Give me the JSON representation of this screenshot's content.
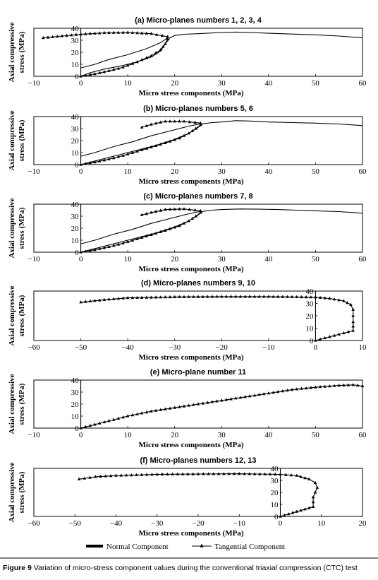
{
  "caption": {
    "label": "Figure 9",
    "text": "Variation of micro-stress component values during the conventional triaxial compression (CTC) test"
  },
  "legend": {
    "normal": "Normal Component",
    "tangential": "Tangential Component"
  },
  "chart_data": [
    {
      "type": "line",
      "title": "(a) Micro-planes numbers 1, 2, 3, 4",
      "xlabel": "Micro stress components (MPa)",
      "ylabel": "Axial compressive stress (MPa)",
      "xlim": [
        -10,
        60
      ],
      "ylim": [
        0,
        40
      ],
      "xticks": [
        -10,
        0,
        10,
        20,
        30,
        40,
        50,
        60
      ],
      "yticks": [
        0,
        10,
        20,
        30,
        40
      ],
      "series": [
        {
          "name": "Normal Component",
          "marker": "none",
          "points": [
            [
              0,
              0
            ],
            [
              2,
              3
            ],
            [
              5,
              6
            ],
            [
              9,
              9
            ],
            [
              12,
              12
            ],
            [
              15,
              16
            ],
            [
              17,
              21
            ],
            [
              18,
              27
            ],
            [
              19,
              32
            ],
            [
              20,
              34
            ],
            [
              22,
              35
            ],
            [
              25,
              35.5
            ],
            [
              30,
              36.5
            ],
            [
              33,
              36.8
            ],
            [
              36,
              36.5
            ],
            [
              40,
              35.8
            ],
            [
              45,
              35.2
            ],
            [
              50,
              34.5
            ],
            [
              55,
              33.5
            ],
            [
              60,
              32
            ]
          ]
        },
        {
          "name": "Normal Component",
          "marker": "none",
          "points": [
            [
              0,
              7
            ],
            [
              3,
              10
            ],
            [
              6,
              14
            ],
            [
              10,
              18
            ],
            [
              14,
              23
            ],
            [
              17,
              28
            ],
            [
              18.5,
              32
            ]
          ]
        },
        {
          "name": "Tangential Component",
          "marker": "triangle",
          "points": [
            [
              0,
              0
            ],
            [
              3,
              2
            ],
            [
              6,
              4.5
            ],
            [
              9,
              7.5
            ],
            [
              12,
              12
            ],
            [
              15,
              17
            ],
            [
              17,
              22
            ],
            [
              18,
              27
            ],
            [
              18.5,
              31
            ],
            [
              18.5,
              33
            ],
            [
              15,
              35.5
            ],
            [
              10,
              36.5
            ],
            [
              5,
              36.2
            ],
            [
              0,
              35
            ],
            [
              -4,
              33.5
            ],
            [
              -8,
              32
            ]
          ]
        }
      ]
    },
    {
      "type": "line",
      "title": "(b) Micro-planes numbers 5, 6",
      "xlabel": "Micro stress components (MPa)",
      "ylabel": "Axial compressive stress (MPa)",
      "xlim": [
        -10,
        60
      ],
      "ylim": [
        0,
        40
      ],
      "xticks": [
        -10,
        0,
        10,
        20,
        30,
        40,
        50,
        60
      ],
      "yticks": [
        0,
        10,
        20,
        30,
        40
      ],
      "series": [
        {
          "name": "Normal Component",
          "marker": "none",
          "points": [
            [
              0,
              0
            ],
            [
              4,
              4
            ],
            [
              8,
              8
            ],
            [
              12,
              12
            ],
            [
              16,
              16
            ],
            [
              20,
              21
            ],
            [
              23,
              26
            ],
            [
              25,
              31
            ],
            [
              26,
              34
            ],
            [
              28,
              35
            ],
            [
              30,
              35.5
            ],
            [
              33,
              36.6
            ],
            [
              36,
              36.3
            ],
            [
              40,
              35.5
            ],
            [
              45,
              35
            ],
            [
              50,
              34.5
            ],
            [
              55,
              33.8
            ],
            [
              60,
              32.5
            ]
          ]
        },
        {
          "name": "Normal Component",
          "marker": "none",
          "points": [
            [
              0,
              7
            ],
            [
              3,
              10
            ],
            [
              7,
              15
            ],
            [
              11,
              19
            ],
            [
              15,
              24
            ],
            [
              19,
              28
            ],
            [
              23,
              32
            ],
            [
              25.5,
              34
            ]
          ]
        },
        {
          "name": "Tangential Component",
          "marker": "triangle",
          "points": [
            [
              0,
              0
            ],
            [
              3,
              2
            ],
            [
              6,
              4.5
            ],
            [
              9,
              7.5
            ],
            [
              12,
              11
            ],
            [
              15,
              14.5
            ],
            [
              18,
              18
            ],
            [
              21,
              22
            ],
            [
              23,
              26
            ],
            [
              24.5,
              30
            ],
            [
              25.5,
              33
            ],
            [
              25.5,
              34.5
            ],
            [
              22,
              36
            ],
            [
              18,
              36
            ],
            [
              15,
              33.5
            ],
            [
              13,
              31
            ]
          ]
        }
      ]
    },
    {
      "type": "line",
      "title": "(c) Micro-planes numbers 7, 8",
      "xlabel": "Micro stress components (MPa)",
      "ylabel": "Axial compressive stress (MPa)",
      "xlim": [
        -10,
        60
      ],
      "ylim": [
        0,
        40
      ],
      "xticks": [
        -10,
        0,
        10,
        20,
        30,
        40,
        50,
        60
      ],
      "yticks": [
        0,
        10,
        20,
        30,
        40
      ],
      "series": [
        {
          "name": "Normal Component",
          "marker": "none",
          "points": [
            [
              0,
              0
            ],
            [
              4,
              4
            ],
            [
              8,
              8
            ],
            [
              12,
              12
            ],
            [
              16,
              16
            ],
            [
              20,
              21
            ],
            [
              23,
              26
            ],
            [
              25,
              31
            ],
            [
              26,
              34
            ],
            [
              28,
              35
            ],
            [
              30,
              35.5
            ],
            [
              34,
              36
            ],
            [
              38,
              35.8
            ],
            [
              42,
              35.5
            ],
            [
              46,
              35
            ],
            [
              50,
              34.5
            ],
            [
              55,
              33.8
            ],
            [
              60,
              32.5
            ]
          ]
        },
        {
          "name": "Normal Component",
          "marker": "none",
          "points": [
            [
              0,
              7
            ],
            [
              3,
              10
            ],
            [
              7,
              15
            ],
            [
              11,
              19
            ],
            [
              15,
              24
            ],
            [
              19,
              28
            ],
            [
              23,
              32
            ],
            [
              25.5,
              34
            ]
          ]
        },
        {
          "name": "Tangential Component",
          "marker": "triangle",
          "points": [
            [
              0,
              0
            ],
            [
              3,
              2
            ],
            [
              6,
              4.5
            ],
            [
              9,
              7.5
            ],
            [
              12,
              11
            ],
            [
              15,
              14.5
            ],
            [
              18,
              18
            ],
            [
              21,
              22
            ],
            [
              23,
              26
            ],
            [
              24.5,
              30
            ],
            [
              25.5,
              33
            ],
            [
              25.5,
              34.5
            ],
            [
              22,
              36
            ],
            [
              18,
              35.5
            ],
            [
              15,
              33
            ],
            [
              13,
              31
            ]
          ]
        }
      ]
    },
    {
      "type": "line",
      "title": "(d) Micro-planes numbers 9, 10",
      "xlabel": "Micro stress components (MPa)",
      "ylabel": "Axial compressive stress (MPa)",
      "xlim": [
        -60,
        10
      ],
      "ylim": [
        0,
        40
      ],
      "xticks": [
        -60,
        -50,
        -40,
        -30,
        -20,
        -10,
        0,
        10
      ],
      "yticks": [
        0,
        10,
        20,
        30,
        40
      ],
      "series": [
        {
          "name": "Tangential Component",
          "marker": "triangle",
          "points": [
            [
              0,
              0
            ],
            [
              2,
              2
            ],
            [
              4,
              4
            ],
            [
              6,
              6
            ],
            [
              8,
              8
            ],
            [
              8,
              15
            ],
            [
              8,
              20
            ],
            [
              8,
              25
            ],
            [
              7.5,
              29
            ],
            [
              6,
              32
            ],
            [
              3,
              34
            ],
            [
              0,
              35
            ],
            [
              -10,
              35.5
            ],
            [
              -20,
              35.5
            ],
            [
              -30,
              35.2
            ],
            [
              -40,
              34.5
            ],
            [
              -45,
              33
            ],
            [
              -50,
              31
            ]
          ]
        }
      ]
    },
    {
      "type": "line",
      "title": "(e) Micro-plane number 11",
      "xlabel": "Micro stress components (MPa)",
      "ylabel": "Axial compressive stress (MPa)",
      "xlim": [
        -10,
        60
      ],
      "ylim": [
        0,
        40
      ],
      "xticks": [
        -10,
        0,
        10,
        20,
        30,
        40,
        50,
        60
      ],
      "yticks": [
        0,
        10,
        20,
        30,
        40
      ],
      "series": [
        {
          "name": "Tangential Component",
          "marker": "triangle",
          "points": [
            [
              0,
              0
            ],
            [
              5,
              5
            ],
            [
              10,
              10
            ],
            [
              15,
              14
            ],
            [
              20,
              17
            ],
            [
              25,
              20
            ],
            [
              30,
              23
            ],
            [
              35,
              26
            ],
            [
              40,
              29
            ],
            [
              45,
              32
            ],
            [
              50,
              34
            ],
            [
              55,
              35.5
            ],
            [
              58,
              36
            ],
            [
              60,
              35
            ]
          ]
        }
      ]
    },
    {
      "type": "line",
      "title": "(f) Micro-planes numbers 12, 13",
      "xlabel": "Micro stress components (MPa)",
      "ylabel": "Axial compressive stress (MPa)",
      "xlim": [
        -60,
        20
      ],
      "ylim": [
        0,
        40
      ],
      "xticks": [
        -60,
        -50,
        -40,
        -30,
        -20,
        -10,
        0,
        10,
        20
      ],
      "yticks": [
        0,
        10,
        20,
        30,
        40
      ],
      "series": [
        {
          "name": "Tangential Component",
          "marker": "triangle",
          "points": [
            [
              0,
              0
            ],
            [
              2,
              2
            ],
            [
              4,
              4
            ],
            [
              6,
              6
            ],
            [
              8,
              8
            ],
            [
              8,
              12
            ],
            [
              8,
              16
            ],
            [
              8.5,
              20
            ],
            [
              9,
              24
            ],
            [
              8.5,
              28
            ],
            [
              7,
              31
            ],
            [
              4,
              34
            ],
            [
              0,
              35
            ],
            [
              -10,
              35.5
            ],
            [
              -20,
              35.3
            ],
            [
              -30,
              35
            ],
            [
              -40,
              34
            ],
            [
              -45,
              33
            ],
            [
              -49,
              31
            ]
          ]
        }
      ]
    }
  ]
}
